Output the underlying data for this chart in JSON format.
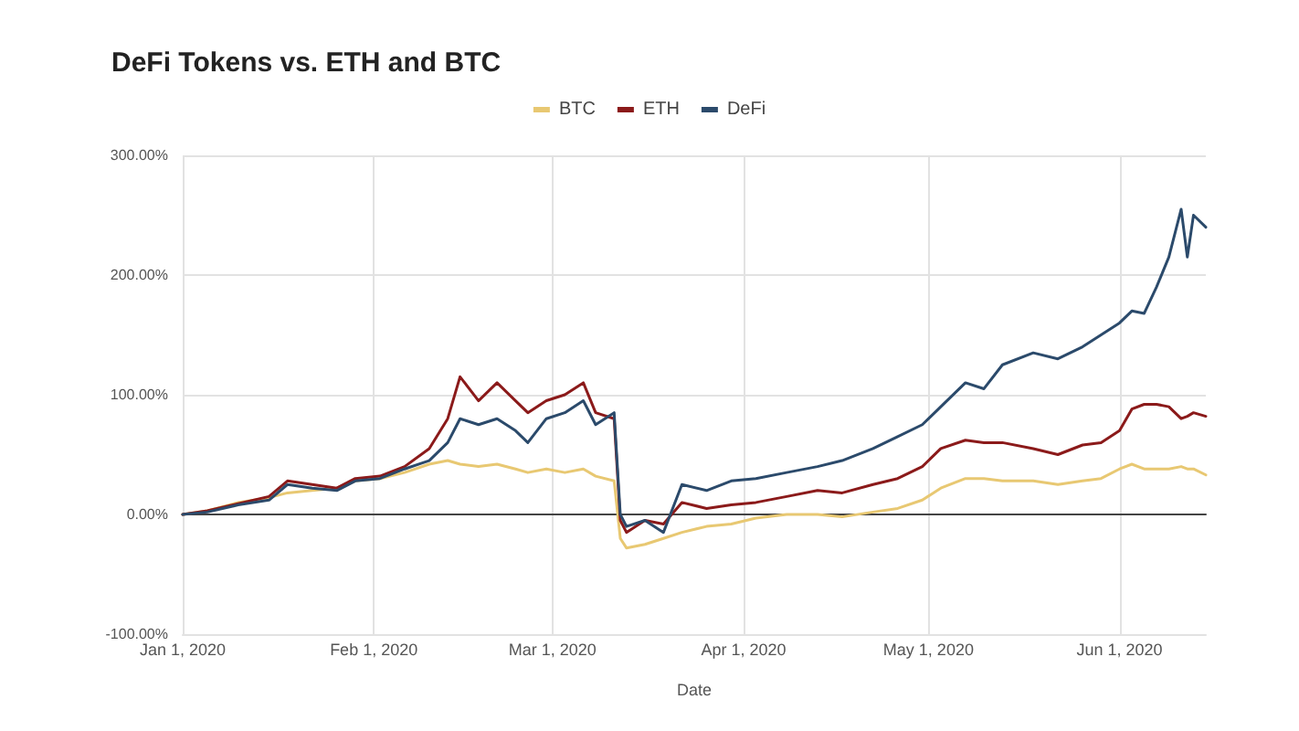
{
  "chart_data": {
    "type": "line",
    "title": "DeFi Tokens vs. ETH and BTC",
    "xlabel": "Date",
    "x": [
      "2020-01-01",
      "2020-01-05",
      "2020-01-10",
      "2020-01-15",
      "2020-01-18",
      "2020-01-22",
      "2020-01-26",
      "2020-01-29",
      "2020-02-02",
      "2020-02-06",
      "2020-02-10",
      "2020-02-13",
      "2020-02-15",
      "2020-02-18",
      "2020-02-21",
      "2020-02-24",
      "2020-02-26",
      "2020-02-29",
      "2020-03-03",
      "2020-03-06",
      "2020-03-08",
      "2020-03-11",
      "2020-03-12",
      "2020-03-13",
      "2020-03-16",
      "2020-03-19",
      "2020-03-22",
      "2020-03-26",
      "2020-03-30",
      "2020-04-03",
      "2020-04-08",
      "2020-04-13",
      "2020-04-17",
      "2020-04-22",
      "2020-04-26",
      "2020-04-30",
      "2020-05-03",
      "2020-05-07",
      "2020-05-10",
      "2020-05-13",
      "2020-05-18",
      "2020-05-22",
      "2020-05-26",
      "2020-05-29",
      "2020-06-01",
      "2020-06-03",
      "2020-06-05",
      "2020-06-07",
      "2020-06-09",
      "2020-06-11",
      "2020-06-12",
      "2020-06-13",
      "2020-06-15"
    ],
    "series": [
      {
        "name": "BTC",
        "color": "#e8c872",
        "values": [
          0,
          3,
          10,
          14,
          18,
          20,
          22,
          28,
          30,
          35,
          42,
          45,
          42,
          40,
          42,
          38,
          35,
          38,
          35,
          38,
          32,
          28,
          -20,
          -28,
          -25,
          -20,
          -15,
          -10,
          -8,
          -3,
          0,
          0,
          -2,
          2,
          5,
          12,
          22,
          30,
          30,
          28,
          28,
          25,
          28,
          30,
          38,
          42,
          38,
          38,
          38,
          40,
          38,
          38,
          33
        ]
      },
      {
        "name": "ETH",
        "color": "#8b1a1a",
        "values": [
          0,
          3,
          9,
          15,
          28,
          25,
          22,
          30,
          32,
          40,
          55,
          80,
          115,
          95,
          110,
          95,
          85,
          95,
          100,
          110,
          85,
          80,
          -5,
          -15,
          -5,
          -8,
          10,
          5,
          8,
          10,
          15,
          20,
          18,
          25,
          30,
          40,
          55,
          62,
          60,
          60,
          55,
          50,
          58,
          60,
          70,
          88,
          92,
          92,
          90,
          80,
          82,
          85,
          82
        ]
      },
      {
        "name": "DeFi",
        "color": "#2b4a6b",
        "values": [
          0,
          2,
          8,
          12,
          25,
          22,
          20,
          28,
          30,
          38,
          45,
          60,
          80,
          75,
          80,
          70,
          60,
          80,
          85,
          95,
          75,
          85,
          0,
          -10,
          -5,
          -15,
          25,
          20,
          28,
          30,
          35,
          40,
          45,
          55,
          65,
          75,
          90,
          110,
          105,
          125,
          135,
          130,
          140,
          150,
          160,
          170,
          168,
          190,
          215,
          255,
          215,
          250,
          240
        ]
      }
    ],
    "xlim": [
      "2020-01-01",
      "2020-06-15"
    ],
    "xticks": [
      {
        "value": "2020-01-01",
        "label": "Jan 1, 2020"
      },
      {
        "value": "2020-02-01",
        "label": "Feb 1, 2020"
      },
      {
        "value": "2020-03-01",
        "label": "Mar 1, 2020"
      },
      {
        "value": "2020-04-01",
        "label": "Apr 1, 2020"
      },
      {
        "value": "2020-05-01",
        "label": "May 1, 2020"
      },
      {
        "value": "2020-06-01",
        "label": "Jun 1, 2020"
      }
    ],
    "ylim": [
      -100,
      300
    ],
    "yticks": [
      {
        "value": -100,
        "label": "-100.00%"
      },
      {
        "value": 0,
        "label": "0.00%"
      },
      {
        "value": 100,
        "label": "100.00%"
      },
      {
        "value": 200,
        "label": "200.00%"
      },
      {
        "value": 300,
        "label": "300.00%"
      }
    ],
    "grid": true,
    "legend": "top",
    "marker": "none",
    "line_style": "solid"
  }
}
